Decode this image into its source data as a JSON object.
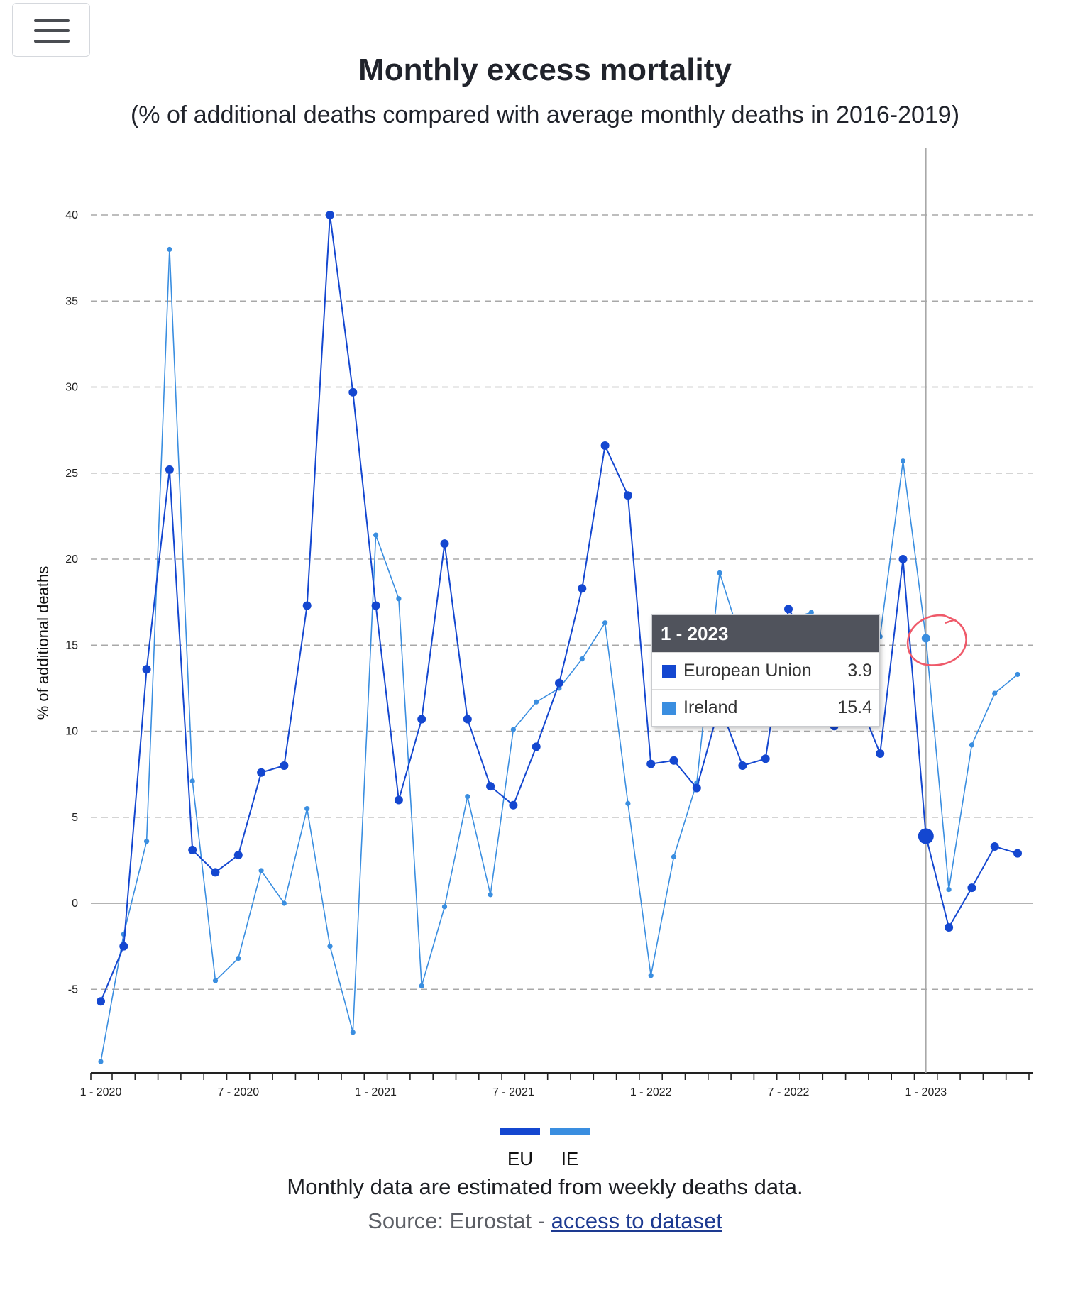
{
  "menu": {
    "icon": "hamburger-menu-icon"
  },
  "header": {
    "title": "Monthly excess mortality",
    "subtitle": "(% of additional deaths compared with average monthly deaths in 2016-2019)"
  },
  "chart_data": {
    "type": "line",
    "title": "Monthly excess mortality",
    "subtitle": "(% of additional deaths compared with average monthly deaths in 2016-2019)",
    "ylabel": "% of additional deaths",
    "xlabel": "",
    "ylim": [
      -9.5,
      42
    ],
    "yticks": [
      -5,
      0,
      5,
      10,
      15,
      20,
      25,
      30,
      35,
      40
    ],
    "grid": true,
    "legend_position": "bottom",
    "x": [
      "1 - 2020",
      "2 - 2020",
      "3 - 2020",
      "4 - 2020",
      "5 - 2020",
      "6 - 2020",
      "7 - 2020",
      "8 - 2020",
      "9 - 2020",
      "10 - 2020",
      "11 - 2020",
      "12 - 2020",
      "1 - 2021",
      "2 - 2021",
      "3 - 2021",
      "4 - 2021",
      "5 - 2021",
      "6 - 2021",
      "7 - 2021",
      "8 - 2021",
      "9 - 2021",
      "10 - 2021",
      "11 - 2021",
      "12 - 2021",
      "1 - 2022",
      "2 - 2022",
      "3 - 2022",
      "4 - 2022",
      "5 - 2022",
      "6 - 2022",
      "7 - 2022",
      "8 - 2022",
      "9 - 2022",
      "10 - 2022",
      "11 - 2022",
      "12 - 2022",
      "1 - 2023",
      "2 - 2023",
      "3 - 2023",
      "4 - 2023",
      "5 - 2023"
    ],
    "xtick_labels": [
      {
        "index": 0,
        "label": "1 - 2020"
      },
      {
        "index": 6,
        "label": "7 - 2020"
      },
      {
        "index": 12,
        "label": "1 - 2021"
      },
      {
        "index": 18,
        "label": "7 - 2021"
      },
      {
        "index": 24,
        "label": "1 - 2022"
      },
      {
        "index": 30,
        "label": "7 - 2022"
      },
      {
        "index": 36,
        "label": "1 - 2023"
      }
    ],
    "highlight_index": 36,
    "series": [
      {
        "name": "EU",
        "color": "#1447d0",
        "values": [
          -5.7,
          -2.5,
          13.6,
          25.2,
          3.1,
          1.8,
          2.8,
          7.6,
          8.0,
          17.3,
          40.0,
          29.7,
          17.3,
          6.0,
          10.7,
          20.9,
          10.7,
          6.8,
          5.7,
          9.1,
          12.8,
          18.3,
          26.6,
          23.7,
          8.1,
          8.3,
          6.7,
          11.5,
          8.0,
          8.4,
          17.1,
          15.0,
          10.3,
          12.0,
          8.7,
          20.0,
          3.9,
          -1.4,
          0.9,
          3.3,
          2.9
        ]
      },
      {
        "name": "IE",
        "color": "#3a8ee0",
        "values": [
          -9.2,
          -1.8,
          3.6,
          38.0,
          7.1,
          -4.5,
          -3.2,
          1.9,
          0.0,
          5.5,
          -2.5,
          -7.5,
          21.4,
          17.7,
          -4.8,
          -0.2,
          6.2,
          0.5,
          10.1,
          11.7,
          12.5,
          14.2,
          16.3,
          5.8,
          -4.2,
          2.7,
          7.0,
          19.2,
          15.0,
          15.5,
          16.5,
          16.9,
          15.5,
          15.6,
          15.5,
          25.7,
          15.4,
          0.8,
          9.2,
          12.2,
          13.3
        ]
      }
    ]
  },
  "tooltip": {
    "title": "1 - 2023",
    "rows": [
      {
        "name": "European Union",
        "value": "3.9",
        "color": "#1447d0"
      },
      {
        "name": "Ireland",
        "value": "15.4",
        "color": "#3a8ee0"
      }
    ]
  },
  "legend": {
    "items": [
      {
        "label": "EU",
        "color": "#1447d0"
      },
      {
        "label": "IE",
        "color": "#3a8ee0"
      }
    ]
  },
  "annotation": {
    "color": "#ef5a6a"
  },
  "footer": {
    "note": "Monthly data are estimated from weekly deaths data.",
    "source_prefix": "Source: Eurostat - ",
    "link_text": "access to dataset"
  }
}
